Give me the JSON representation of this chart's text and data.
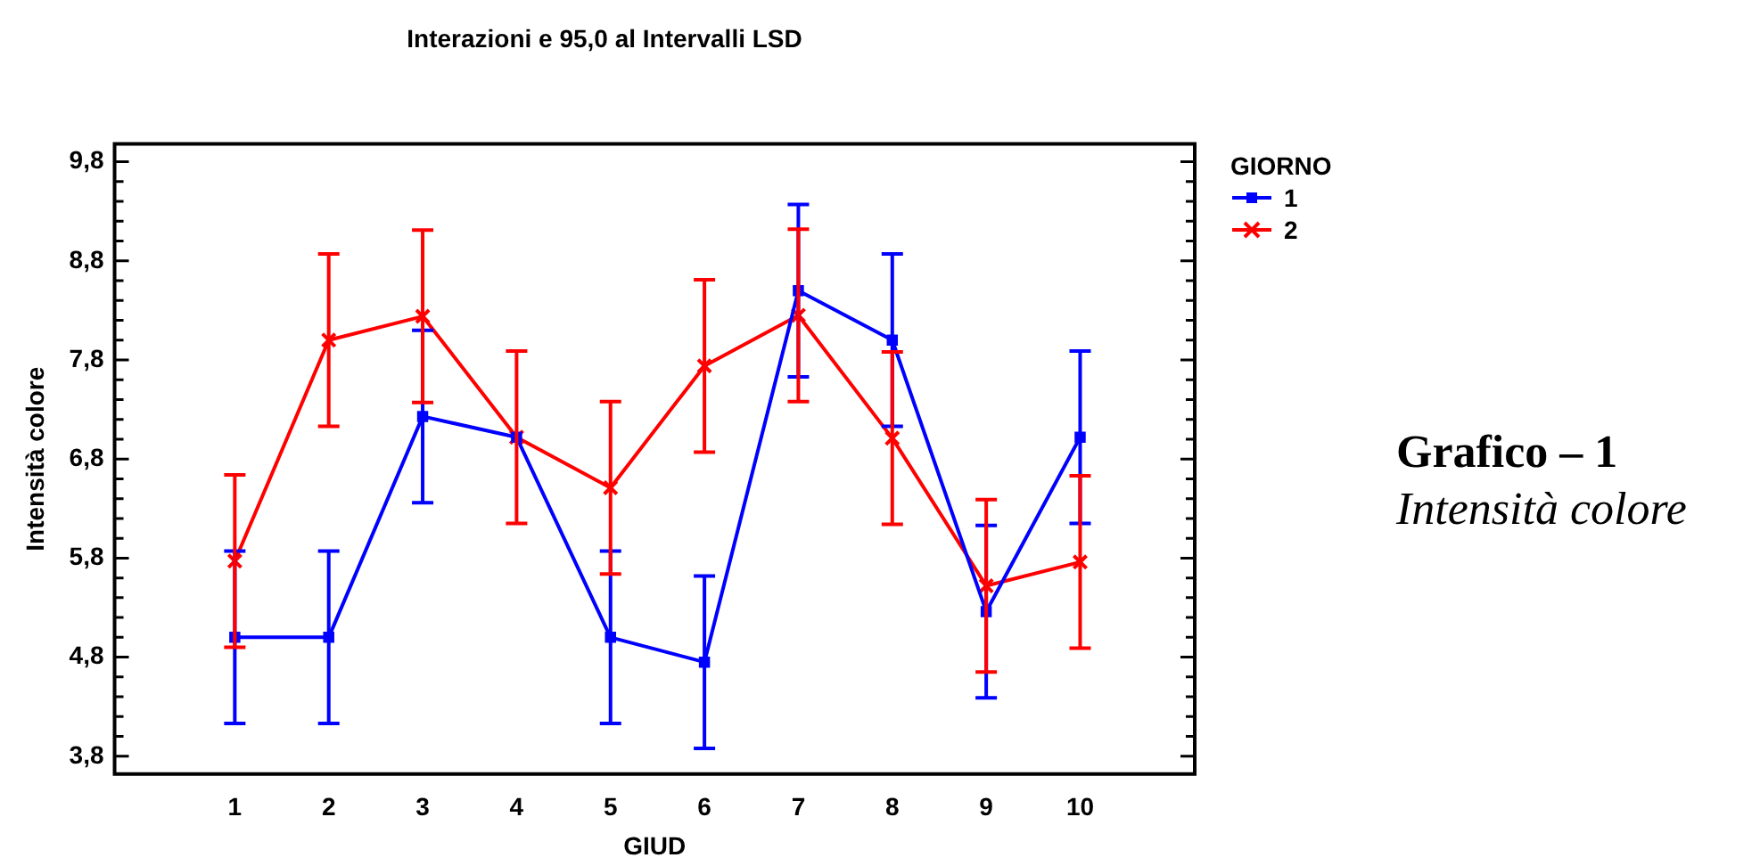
{
  "chart_data": {
    "type": "line",
    "title": "Interazioni e 95,0 al Intervalli LSD",
    "xlabel": "GIUD",
    "ylabel": "Intensità colore",
    "legend_title": "GIORNO",
    "categories": [
      "1",
      "2",
      "3",
      "4",
      "5",
      "6",
      "7",
      "8",
      "9",
      "10"
    ],
    "series": [
      {
        "name": "1",
        "color": "#0000ff",
        "marker": "square",
        "values": [
          5.0,
          5.0,
          7.23,
          7.02,
          5.0,
          4.75,
          8.5,
          8.0,
          5.26,
          7.02
        ],
        "errors": [
          0.87,
          0.87,
          0.87,
          null,
          0.87,
          0.87,
          0.87,
          0.87,
          0.87,
          0.87
        ]
      },
      {
        "name": "2",
        "color": "#ff0000",
        "marker": "cross",
        "values": [
          5.77,
          8.0,
          8.24,
          7.02,
          6.51,
          7.74,
          8.25,
          7.01,
          5.52,
          5.76
        ],
        "errors": [
          0.87,
          0.87,
          0.87,
          0.87,
          0.87,
          0.87,
          0.87,
          0.87,
          0.87,
          0.87
        ]
      }
    ],
    "ylim": [
      3.62,
      9.98
    ],
    "yticks": [
      {
        "value": 3.8,
        "label": "3,8"
      },
      {
        "value": 4.0,
        "label": null
      },
      {
        "value": 4.2,
        "label": null
      },
      {
        "value": 4.4,
        "label": null
      },
      {
        "value": 4.6,
        "label": null
      },
      {
        "value": 4.8,
        "label": "4,8"
      },
      {
        "value": 5.0,
        "label": null
      },
      {
        "value": 5.2,
        "label": null
      },
      {
        "value": 5.4,
        "label": null
      },
      {
        "value": 5.6,
        "label": null
      },
      {
        "value": 5.8,
        "label": "5,8"
      },
      {
        "value": 6.0,
        "label": null
      },
      {
        "value": 6.2,
        "label": null
      },
      {
        "value": 6.4,
        "label": null
      },
      {
        "value": 6.6,
        "label": null
      },
      {
        "value": 6.8,
        "label": "6,8"
      },
      {
        "value": 7.0,
        "label": null
      },
      {
        "value": 7.2,
        "label": null
      },
      {
        "value": 7.4,
        "label": null
      },
      {
        "value": 7.6,
        "label": null
      },
      {
        "value": 7.8,
        "label": "7,8"
      },
      {
        "value": 8.0,
        "label": null
      },
      {
        "value": 8.2,
        "label": null
      },
      {
        "value": 8.4,
        "label": null
      },
      {
        "value": 8.6,
        "label": null
      },
      {
        "value": 8.8,
        "label": "8,8"
      },
      {
        "value": 9.0,
        "label": null
      },
      {
        "value": 9.2,
        "label": null
      },
      {
        "value": 9.4,
        "label": null
      },
      {
        "value": 9.6,
        "label": null
      },
      {
        "value": 9.8,
        "label": "9,8"
      }
    ],
    "grid": false,
    "legend": "top right",
    "annotations": [
      "Grafico – 1",
      "Intensità colore"
    ]
  }
}
